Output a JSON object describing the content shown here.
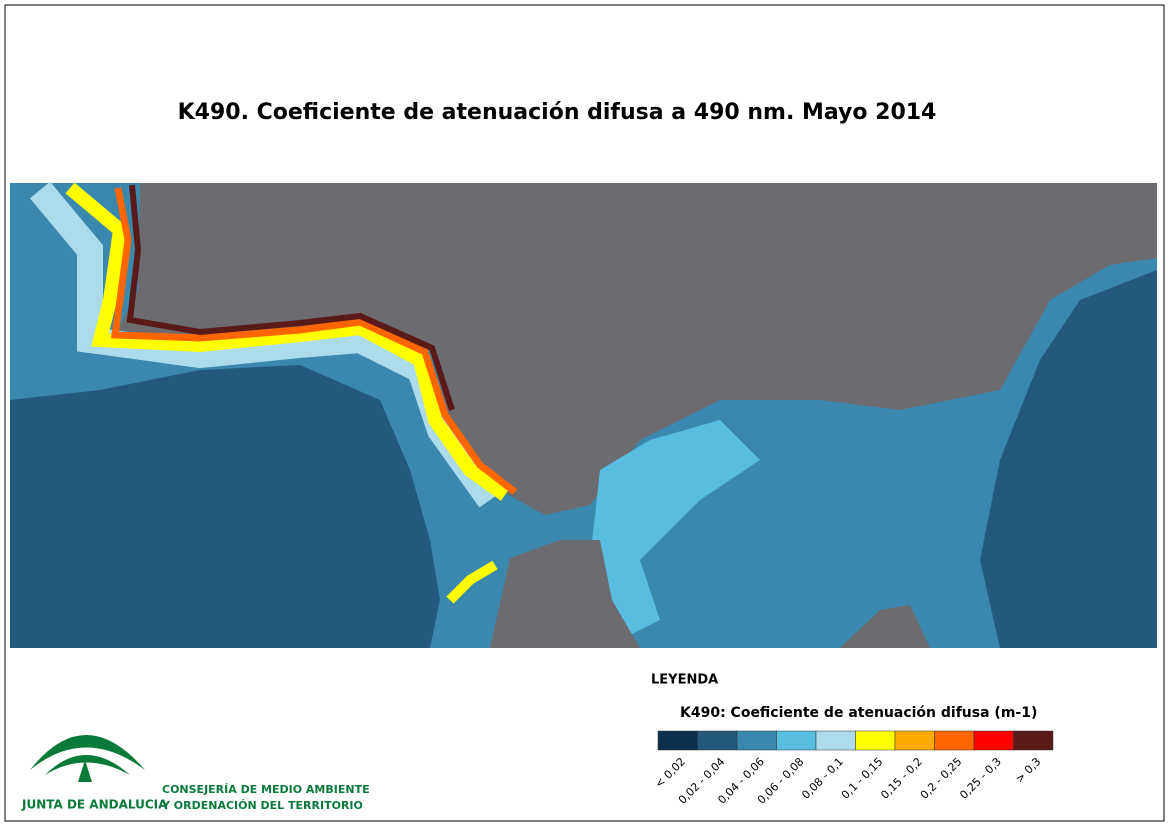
{
  "title": "K490. Coeficiente de atenuación difusa a 490 nm. Mayo 2014",
  "legend": {
    "heading": "LEYENDA",
    "title": "K490: Coeficiente de atenuación difusa (m-1)",
    "classes": [
      {
        "label": "< 0,02",
        "color": "#0b2f4f"
      },
      {
        "label": "0,02 - 0,04",
        "color": "#235a7c"
      },
      {
        "label": "0,04 - 0,06",
        "color": "#3a88ae"
      },
      {
        "label": "0,06 - 0,08",
        "color": "#58bde0"
      },
      {
        "label": "0,08 - 0,1",
        "color": "#acdceb"
      },
      {
        "label": "0,1 - 0,15",
        "color": "#ffff00"
      },
      {
        "label": "0,15 - 0,2",
        "color": "#ffaa00"
      },
      {
        "label": "0,2 - 0,25",
        "color": "#ff6600"
      },
      {
        "label": "0,25 - 0,3",
        "color": "#ff0000"
      },
      {
        "label": "> 0,3",
        "color": "#5a1a1a"
      }
    ]
  },
  "logo": {
    "name": "JUNTA DE ANDALUCIA",
    "line1": "CONSEJERÍA DE MEDIO AMBIENTE",
    "line2": "Y ORDENACIÓN DEL TERRITORIO"
  }
}
